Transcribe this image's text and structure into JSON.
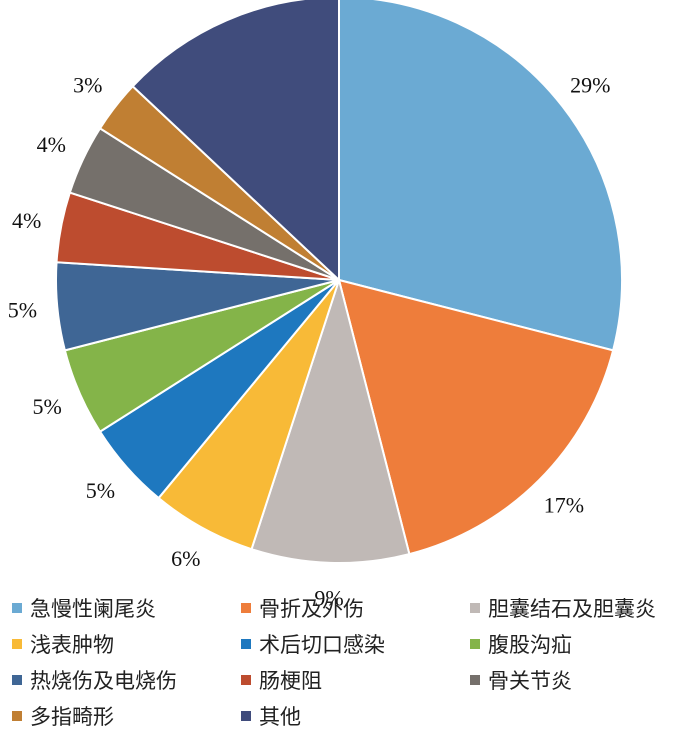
{
  "chart_data": {
    "type": "pie",
    "title": "",
    "start_angle_deg": 0,
    "direction": "clockwise",
    "slices": [
      {
        "name": "急慢性阑尾炎",
        "value": 29,
        "label": "29%",
        "color": "#6BAAD3"
      },
      {
        "name": "骨折及外伤",
        "value": 17,
        "label": "17%",
        "color": "#EE7D3B"
      },
      {
        "name": "胆囊结石及胆囊炎",
        "value": 9,
        "label": "9%",
        "color": "#C0B9B6"
      },
      {
        "name": "浅表肿物",
        "value": 6,
        "label": "6%",
        "color": "#F8BA37"
      },
      {
        "name": "术后切口感染",
        "value": 5,
        "label": "5%",
        "color": "#1E78BF"
      },
      {
        "name": "腹股沟疝",
        "value": 5,
        "label": "5%",
        "color": "#84B449"
      },
      {
        "name": "热烧伤及电烧伤",
        "value": 5,
        "label": "5%",
        "color": "#3F6695"
      },
      {
        "name": "肠梗阻",
        "value": 4,
        "label": "4%",
        "color": "#BD4C2F"
      },
      {
        "name": "骨关节炎",
        "value": 4,
        "label": "4%",
        "color": "#75706B"
      },
      {
        "name": "多指畸形",
        "value": 3,
        "label": "3%",
        "color": "#C07F33"
      },
      {
        "name": "其他",
        "value": 13,
        "label": "13%",
        "color": "#404C7C"
      }
    ],
    "legend": {
      "placement": "bottom",
      "columns": 3
    }
  }
}
